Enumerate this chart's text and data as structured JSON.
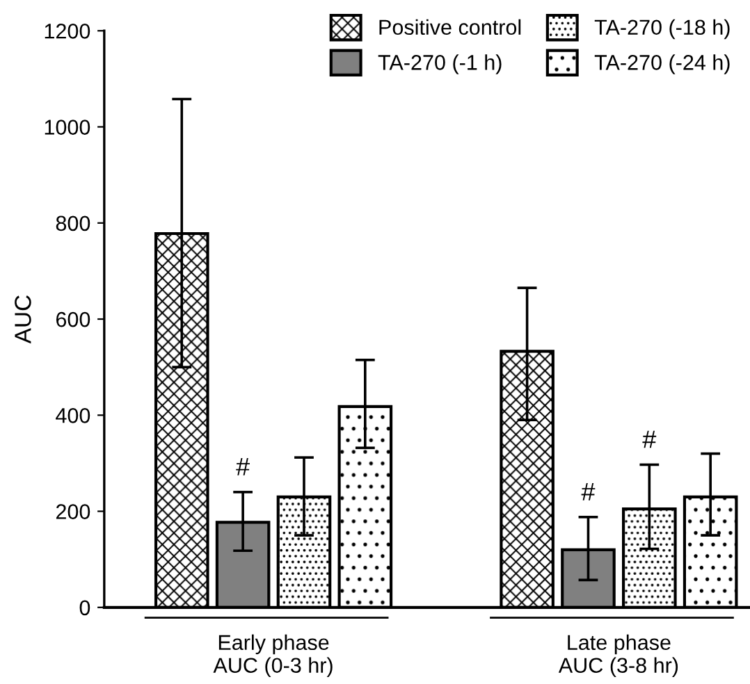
{
  "chart_data": {
    "type": "bar",
    "ylabel": "AUC",
    "categories": [
      "Early phase\nAUC (0-3 hr)",
      "Late phase\nAUC (3-8 hr)"
    ],
    "series": [
      {
        "name": "Positive control",
        "color": "#000000",
        "values": [
          778,
          533
        ],
        "errors": [
          [
            500,
            1058
          ],
          [
            390,
            665
          ]
        ]
      },
      {
        "name": "TA-270 (-1 h)",
        "color": "#808080",
        "values": [
          177,
          120
        ],
        "errors": [
          [
            118,
            240
          ],
          [
            57,
            188
          ]
        ],
        "value_labels": [
          "#",
          "#"
        ]
      },
      {
        "name": "TA-270 (-18 h)",
        "color": "#000000",
        "values": [
          230,
          205
        ],
        "errors": [
          [
            150,
            312
          ],
          [
            122,
            297
          ]
        ],
        "value_labels": [
          null,
          "#"
        ]
      },
      {
        "name": "TA-270 (-24 h)",
        "color": "#000000",
        "values": [
          418,
          230
        ],
        "errors": [
          [
            332,
            515
          ],
          [
            150,
            320
          ]
        ]
      }
    ],
    "ylim": [
      0,
      1200
    ],
    "yticks": [
      0,
      200,
      400,
      600,
      800,
      1000,
      1200
    ],
    "grid": false,
    "legend": "top right"
  }
}
